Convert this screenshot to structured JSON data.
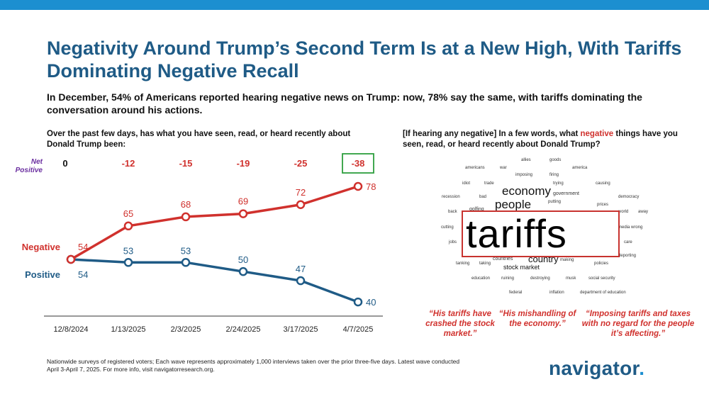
{
  "title": "Negativity Around Trump’s Second Term Is at a New High, With Tariffs Dominating Negative Recall",
  "subtitle": "In December, 54% of Americans reported hearing negative news on Trump: now, 78% say the same, with tariffs dominating the conversation around his actions.",
  "left_question": "Over the past few days, has what you have seen, read, or heard recently about Donald Trump been:",
  "right_question_pre": "[If hearing any negative] In a few words, what ",
  "right_question_highlight": "negative",
  "right_question_post": " things have you seen, read, or heard recently about Donald Trump?",
  "net_positive_label": "Net Positive",
  "footnote": "Nationwide surveys of registered voters; Each wave represents approximately 1,000 interviews taken over the prior three-five days. Latest wave conducted April 3-April 7, 2025. For more info, visit navigatorresearch.org.",
  "logo": "navigator",
  "logo_dot": ".",
  "colors": {
    "negative": "#d0312d",
    "positive": "#1f5b86",
    "accent": "#1c8fd0",
    "net_highlight_border": "#2e9e3e",
    "net_zero": "#111111",
    "net_label": "#6b2fa0"
  },
  "chart_data": {
    "type": "line",
    "x": [
      "12/8/2024",
      "1/13/2025",
      "2/3/2025",
      "2/24/2025",
      "3/17/2025",
      "4/7/2025"
    ],
    "series": [
      {
        "name": "Negative",
        "values": [
          54,
          65,
          68,
          69,
          72,
          78
        ],
        "labels": [
          "54",
          "65",
          "68",
          "69",
          "72",
          "78"
        ]
      },
      {
        "name": "Positive",
        "values": [
          54,
          53,
          53,
          50,
          47,
          40
        ],
        "labels": [
          "54",
          "53",
          "53",
          "50",
          "47",
          "40"
        ]
      }
    ],
    "net_positive": [
      "0",
      "-12",
      "-15",
      "-19",
      "-25",
      "-38"
    ],
    "highlighted_net_index": 5,
    "ylim": [
      35,
      82
    ]
  },
  "word_cloud": [
    {
      "text": "allies",
      "size": 6
    },
    {
      "text": "goods",
      "size": 6
    },
    {
      "text": "americans",
      "size": 6
    },
    {
      "text": "war",
      "size": 6
    },
    {
      "text": "america",
      "size": 6
    },
    {
      "text": "imposing",
      "size": 6
    },
    {
      "text": "firing",
      "size": 6
    },
    {
      "text": "idiot",
      "size": 6
    },
    {
      "text": "trade",
      "size": 6
    },
    {
      "text": "trying",
      "size": 6
    },
    {
      "text": "causing",
      "size": 6
    },
    {
      "text": "economy",
      "size": 17
    },
    {
      "text": "government",
      "size": 7
    },
    {
      "text": "recession",
      "size": 6
    },
    {
      "text": "bad",
      "size": 6
    },
    {
      "text": "democracy",
      "size": 6
    },
    {
      "text": "putting",
      "size": 6
    },
    {
      "text": "prices",
      "size": 6
    },
    {
      "text": "people",
      "size": 17
    },
    {
      "text": "golfing",
      "size": 7
    },
    {
      "text": "back",
      "size": 6
    },
    {
      "text": "world",
      "size": 6
    },
    {
      "text": "away",
      "size": 6
    },
    {
      "text": "tariffs",
      "size": 56
    },
    {
      "text": "cutting",
      "size": 6
    },
    {
      "text": "media wrong",
      "size": 6
    },
    {
      "text": "jobs",
      "size": 6
    },
    {
      "text": "care",
      "size": 6
    },
    {
      "text": "country",
      "size": 13
    },
    {
      "text": "deporting",
      "size": 6
    },
    {
      "text": "tanking",
      "size": 6
    },
    {
      "text": "taking",
      "size": 6
    },
    {
      "text": "countries",
      "size": 7
    },
    {
      "text": "making",
      "size": 6
    },
    {
      "text": "policies",
      "size": 6
    },
    {
      "text": "stock market",
      "size": 9
    },
    {
      "text": "education",
      "size": 6
    },
    {
      "text": "ruining",
      "size": 6
    },
    {
      "text": "destroying",
      "size": 6
    },
    {
      "text": "musk",
      "size": 6
    },
    {
      "text": "social security",
      "size": 6
    },
    {
      "text": "federal",
      "size": 6
    },
    {
      "text": "inflation",
      "size": 6
    },
    {
      "text": "department of education",
      "size": 6
    }
  ],
  "quotes": [
    "“His tariffs have crashed the stock market.”",
    "“His mishandling of the economy.”",
    "“Imposing tariffs and taxes with no regard for the people it’s affecting.”"
  ]
}
